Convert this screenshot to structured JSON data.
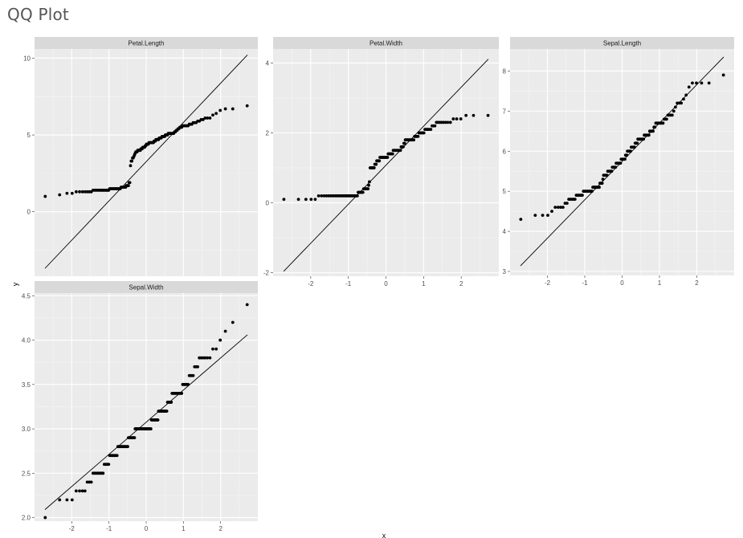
{
  "page": {
    "title": "QQ Plot"
  },
  "chart_data": {
    "type": "scatter",
    "kind": "qq-plot-facets",
    "xlabel": "x",
    "ylabel": "y",
    "grid": true,
    "facets": [
      {
        "name": "Petal.Length",
        "xlim": [
          -3.0,
          3.0
        ],
        "ylim": [
          -4.2,
          10.6
        ],
        "xticks": [
          -2,
          -1,
          0,
          1,
          2
        ],
        "yticks": [
          0,
          5,
          10
        ],
        "show_x_ticks": false,
        "line": {
          "x": [
            -2.72,
            2.72
          ],
          "y": [
            -3.69,
            10.21
          ]
        },
        "groups": [
          {
            "value": 1.0,
            "count": 1
          },
          {
            "value": 1.1,
            "count": 1
          },
          {
            "value": 1.2,
            "count": 2
          },
          {
            "value": 1.3,
            "count": 7
          },
          {
            "value": 1.4,
            "count": 13
          },
          {
            "value": 1.5,
            "count": 13
          },
          {
            "value": 1.6,
            "count": 7
          },
          {
            "value": 1.7,
            "count": 4
          },
          {
            "value": 1.9,
            "count": 2
          },
          {
            "value": 3.0,
            "count": 1
          },
          {
            "value": 3.3,
            "count": 2
          },
          {
            "value": 3.5,
            "count": 2
          },
          {
            "value": 3.6,
            "count": 1
          },
          {
            "value": 3.7,
            "count": 1
          },
          {
            "value": 3.8,
            "count": 1
          },
          {
            "value": 3.9,
            "count": 3
          },
          {
            "value": 4.0,
            "count": 5
          },
          {
            "value": 4.1,
            "count": 3
          },
          {
            "value": 4.2,
            "count": 4
          },
          {
            "value": 4.3,
            "count": 2
          },
          {
            "value": 4.4,
            "count": 4
          },
          {
            "value": 4.5,
            "count": 8
          },
          {
            "value": 4.6,
            "count": 3
          },
          {
            "value": 4.7,
            "count": 5
          },
          {
            "value": 4.8,
            "count": 4
          },
          {
            "value": 4.9,
            "count": 5
          },
          {
            "value": 5.0,
            "count": 4
          },
          {
            "value": 5.1,
            "count": 8
          },
          {
            "value": 5.2,
            "count": 2
          },
          {
            "value": 5.3,
            "count": 2
          },
          {
            "value": 5.4,
            "count": 2
          },
          {
            "value": 5.5,
            "count": 3
          },
          {
            "value": 5.6,
            "count": 6
          },
          {
            "value": 5.7,
            "count": 3
          },
          {
            "value": 5.8,
            "count": 3
          },
          {
            "value": 5.9,
            "count": 2
          },
          {
            "value": 6.0,
            "count": 2
          },
          {
            "value": 6.1,
            "count": 3
          },
          {
            "value": 6.3,
            "count": 1
          },
          {
            "value": 6.4,
            "count": 1
          },
          {
            "value": 6.6,
            "count": 1
          },
          {
            "value": 6.7,
            "count": 2
          },
          {
            "value": 6.9,
            "count": 1
          }
        ]
      },
      {
        "name": "Petal.Width",
        "xlim": [
          -3.0,
          3.0
        ],
        "ylim": [
          -2.1,
          4.4
        ],
        "xticks": [
          -2,
          -1,
          0,
          1,
          2
        ],
        "yticks": [
          -2,
          0,
          2,
          4
        ],
        "show_x_ticks": true,
        "line": {
          "x": [
            -2.72,
            2.72
          ],
          "y": [
            -1.96,
            4.11
          ]
        },
        "groups": [
          {
            "value": 0.1,
            "count": 5
          },
          {
            "value": 0.2,
            "count": 29
          },
          {
            "value": 0.3,
            "count": 7
          },
          {
            "value": 0.4,
            "count": 7
          },
          {
            "value": 0.5,
            "count": 1
          },
          {
            "value": 0.6,
            "count": 1
          },
          {
            "value": 1.0,
            "count": 7
          },
          {
            "value": 1.1,
            "count": 3
          },
          {
            "value": 1.2,
            "count": 5
          },
          {
            "value": 1.3,
            "count": 13
          },
          {
            "value": 1.4,
            "count": 8
          },
          {
            "value": 1.5,
            "count": 12
          },
          {
            "value": 1.6,
            "count": 4
          },
          {
            "value": 1.7,
            "count": 2
          },
          {
            "value": 1.8,
            "count": 12
          },
          {
            "value": 1.9,
            "count": 5
          },
          {
            "value": 2.0,
            "count": 6
          },
          {
            "value": 2.1,
            "count": 6
          },
          {
            "value": 2.2,
            "count": 3
          },
          {
            "value": 2.3,
            "count": 8
          },
          {
            "value": 2.4,
            "count": 3
          },
          {
            "value": 2.5,
            "count": 3
          }
        ]
      },
      {
        "name": "Sepal.Length",
        "xlim": [
          -3.0,
          3.0
        ],
        "ylim": [
          2.9,
          8.55
        ],
        "xticks": [
          -2,
          -1,
          0,
          1,
          2
        ],
        "yticks": [
          3,
          4,
          5,
          6,
          7,
          8
        ],
        "show_x_ticks": true,
        "line": {
          "x": [
            -2.72,
            2.72
          ],
          "y": [
            3.14,
            8.35
          ]
        },
        "groups": [
          {
            "value": 4.3,
            "count": 1
          },
          {
            "value": 4.4,
            "count": 3
          },
          {
            "value": 4.5,
            "count": 1
          },
          {
            "value": 4.6,
            "count": 4
          },
          {
            "value": 4.7,
            "count": 2
          },
          {
            "value": 4.8,
            "count": 5
          },
          {
            "value": 4.9,
            "count": 6
          },
          {
            "value": 5.0,
            "count": 10
          },
          {
            "value": 5.1,
            "count": 9
          },
          {
            "value": 5.2,
            "count": 4
          },
          {
            "value": 5.3,
            "count": 1
          },
          {
            "value": 5.4,
            "count": 6
          },
          {
            "value": 5.5,
            "count": 7
          },
          {
            "value": 5.6,
            "count": 6
          },
          {
            "value": 5.7,
            "count": 8
          },
          {
            "value": 5.8,
            "count": 7
          },
          {
            "value": 5.9,
            "count": 3
          },
          {
            "value": 6.0,
            "count": 6
          },
          {
            "value": 6.1,
            "count": 6
          },
          {
            "value": 6.2,
            "count": 4
          },
          {
            "value": 6.3,
            "count": 9
          },
          {
            "value": 6.4,
            "count": 7
          },
          {
            "value": 6.5,
            "count": 5
          },
          {
            "value": 6.6,
            "count": 2
          },
          {
            "value": 6.7,
            "count": 8
          },
          {
            "value": 6.8,
            "count": 3
          },
          {
            "value": 6.9,
            "count": 4
          },
          {
            "value": 7.0,
            "count": 1
          },
          {
            "value": 7.1,
            "count": 1
          },
          {
            "value": 7.2,
            "count": 3
          },
          {
            "value": 7.3,
            "count": 1
          },
          {
            "value": 7.4,
            "count": 1
          },
          {
            "value": 7.6,
            "count": 1
          },
          {
            "value": 7.7,
            "count": 4
          },
          {
            "value": 7.9,
            "count": 1
          }
        ]
      },
      {
        "name": "Sepal.Width",
        "xlim": [
          -3.0,
          3.0
        ],
        "ylim": [
          1.96,
          4.53
        ],
        "xticks": [
          -2,
          -1,
          0,
          1,
          2
        ],
        "yticks": [
          2.0,
          2.5,
          3.0,
          3.5,
          4.0,
          4.5
        ],
        "show_x_ticks": true,
        "line": {
          "x": [
            -2.72,
            2.72
          ],
          "y": [
            2.09,
            4.06
          ]
        },
        "groups": [
          {
            "value": 2.0,
            "count": 1
          },
          {
            "value": 2.2,
            "count": 3
          },
          {
            "value": 2.3,
            "count": 4
          },
          {
            "value": 2.4,
            "count": 3
          },
          {
            "value": 2.5,
            "count": 8
          },
          {
            "value": 2.6,
            "count": 5
          },
          {
            "value": 2.7,
            "count": 9
          },
          {
            "value": 2.8,
            "count": 14
          },
          {
            "value": 2.9,
            "count": 10
          },
          {
            "value": 3.0,
            "count": 26
          },
          {
            "value": 3.1,
            "count": 11
          },
          {
            "value": 3.2,
            "count": 13
          },
          {
            "value": 3.3,
            "count": 6
          },
          {
            "value": 3.4,
            "count": 12
          },
          {
            "value": 3.5,
            "count": 6
          },
          {
            "value": 3.6,
            "count": 4
          },
          {
            "value": 3.7,
            "count": 3
          },
          {
            "value": 3.8,
            "count": 6
          },
          {
            "value": 3.9,
            "count": 2
          },
          {
            "value": 4.0,
            "count": 1
          },
          {
            "value": 4.1,
            "count": 1
          },
          {
            "value": 4.2,
            "count": 1
          },
          {
            "value": 4.4,
            "count": 1
          }
        ]
      }
    ]
  }
}
